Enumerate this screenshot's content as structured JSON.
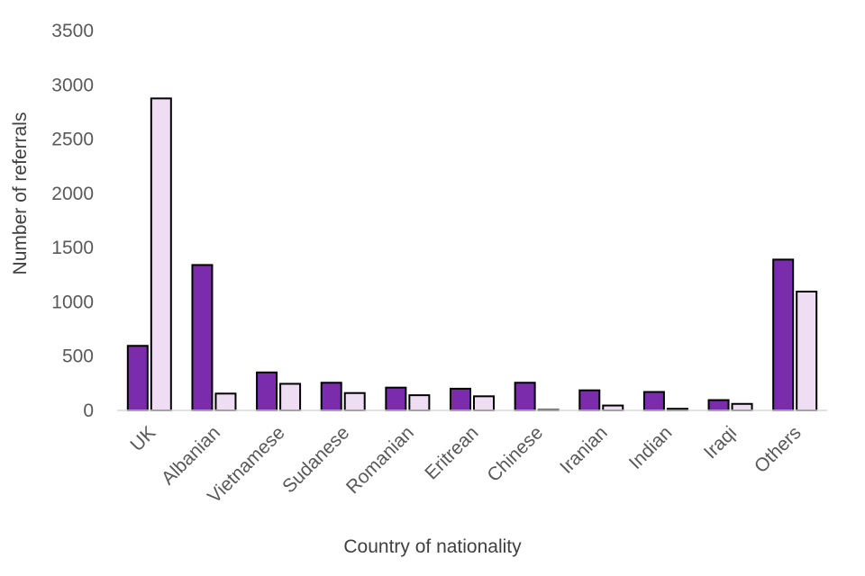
{
  "chart_data": {
    "type": "bar",
    "title": "",
    "xlabel": "Country of nationality",
    "ylabel": "Number of referrals",
    "ylim": [
      0,
      3500
    ],
    "yticks": [
      0,
      500,
      1000,
      1500,
      2000,
      2500,
      3000,
      3500
    ],
    "grid": false,
    "legend": "none",
    "categories": [
      "UK",
      "Albanian",
      "Vietnamese",
      "Sudanese",
      "Romanian",
      "Eritrean",
      "Chinese",
      "Iranian",
      "Indian",
      "Iraqi",
      "Others"
    ],
    "series": [
      {
        "color": "#7B2CAC",
        "values": [
          595,
          1340,
          350,
          255,
          210,
          200,
          255,
          185,
          170,
          95,
          1390
        ]
      },
      {
        "color": "#EEDDF3",
        "values": [
          2875,
          155,
          245,
          160,
          140,
          130,
          5,
          45,
          15,
          60,
          1095
        ]
      }
    ]
  }
}
